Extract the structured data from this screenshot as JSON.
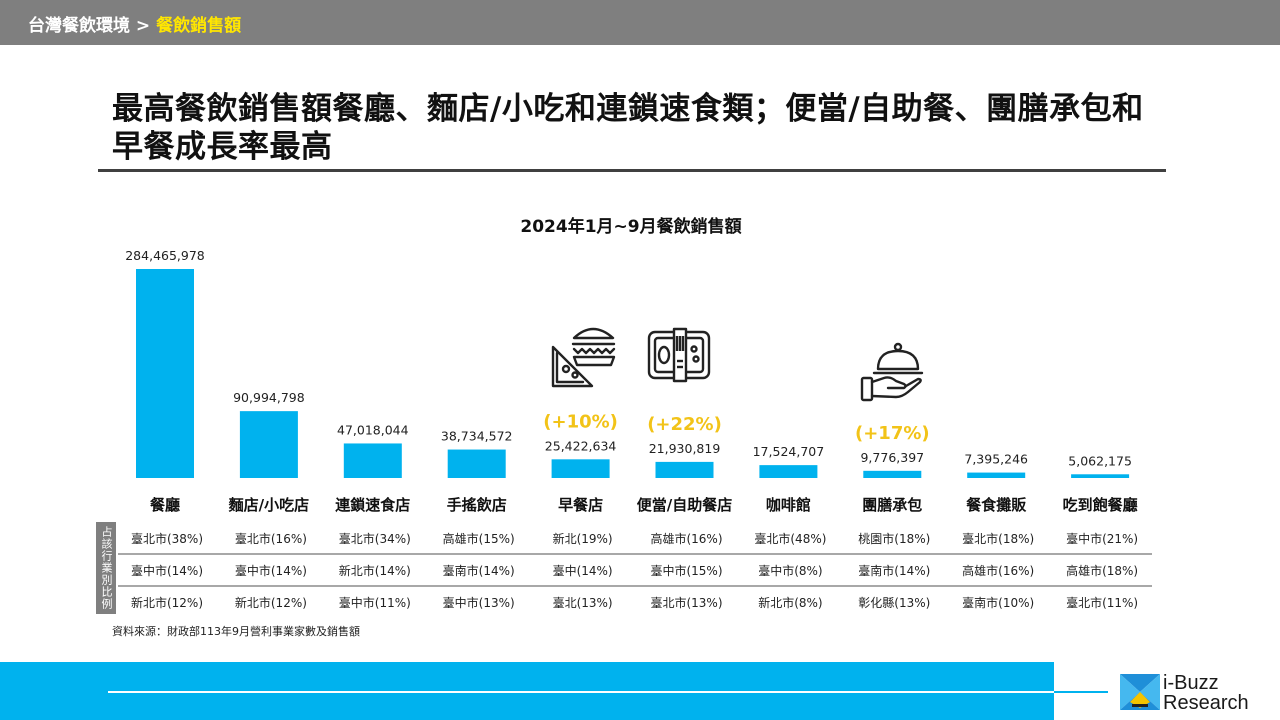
{
  "breadcrumb": {
    "parent": "台灣餐飲環境 >",
    "current": "餐飲銷售額"
  },
  "headline": "最高餐飲銷售額餐廳、麵店/小吃和連鎖速食類；便當/自助餐、團膳承包和早餐成長率最高",
  "side_label": "占該行業別比例",
  "source": "資料來源：財政部113年9月營利事業家數及銷售額",
  "brand": {
    "line1": "i-Buzz",
    "line2": "Research"
  },
  "colors": {
    "bar": "#00b2ee",
    "growth": "#f2c318",
    "band": "#00b2ee",
    "topbar": "#7f7f7f"
  },
  "icons": [
    "sandwich-burger-icon",
    "bento-box-icon",
    "cloche-serving-icon"
  ],
  "chart_data": {
    "type": "bar",
    "title": "2024年1月~9月餐飲銷售額",
    "categories": [
      "餐廳",
      "麵店/小吃店",
      "連鎖速食店",
      "手搖飲店",
      "早餐店",
      "便當/自助餐店",
      "咖啡館",
      "團膳承包",
      "餐食攤販",
      "吃到飽餐廳"
    ],
    "values": [
      284465978,
      90994798,
      47018044,
      38734572,
      25422634,
      21930819,
      17524707,
      9776397,
      7395246,
      5062175
    ],
    "value_labels": [
      "284,465,978",
      "90,994,798",
      "47,018,044",
      "38,734,572",
      "25,422,634",
      "21,930,819",
      "17,524,707",
      "9,776,397",
      "7,395,246",
      "5,062,175"
    ],
    "growth_labels": [
      "",
      "",
      "",
      "",
      "(+10%)",
      "(+22%)",
      "",
      "(+17%)",
      "",
      ""
    ],
    "ylim": [
      0,
      284465978
    ],
    "table_rows": [
      [
        "臺北市(38%)",
        "臺北市(16%)",
        "臺北市(34%)",
        "高雄市(15%)",
        "新北(19%)",
        "高雄市(16%)",
        "臺北市(48%)",
        "桃園市(18%)",
        "臺北市(18%)",
        "臺中市(21%)"
      ],
      [
        "臺中市(14%)",
        "臺中市(14%)",
        "新北市(14%)",
        "臺南市(14%)",
        "臺中(14%)",
        "臺中市(15%)",
        "臺中市(8%)",
        "臺南市(14%)",
        "高雄市(16%)",
        "高雄市(18%)"
      ],
      [
        "新北市(12%)",
        "新北市(12%)",
        "臺中市(11%)",
        "臺中市(13%)",
        "臺北(13%)",
        "臺北市(13%)",
        "新北市(8%)",
        "彰化縣(13%)",
        "臺南市(10%)",
        "臺北市(11%)"
      ]
    ]
  }
}
